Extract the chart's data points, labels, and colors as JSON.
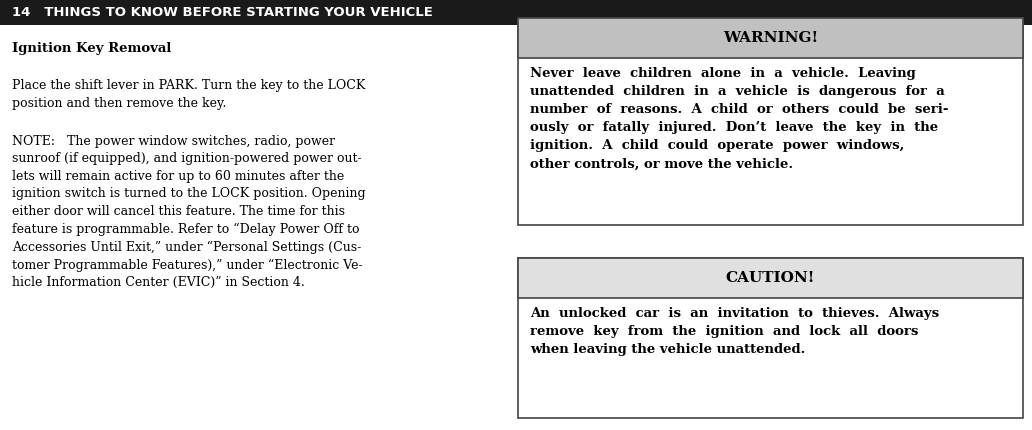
{
  "bg_color": "#ffffff",
  "header_bg": "#1a1a1a",
  "header_text_color": "#ffffff",
  "header_number": "14",
  "header_title": "THINGS TO KNOW BEFORE STARTING YOUR VEHICLE",
  "header_fontsize": 9.5,
  "section_title": "Ignition Key Removal",
  "section_title_fontsize": 9.5,
  "para1_line1": "Place the shift lever in PARK. Turn the key to the LOCK",
  "para1_line2": "position and then remove the key.",
  "para1_fontsize": 9.0,
  "note_lines": [
    "NOTE:   The power window switches, radio, power",
    "sunroof (if equipped), and ignition-powered power out-",
    "lets will remain active for up to 60 minutes after the",
    "ignition switch is turned to the LOCK position. Opening",
    "either door will cancel this feature. The time for this",
    "feature is programmable. Refer to “Delay Power Off to",
    "Accessories Until Exit,” under “Personal Settings (Cus-",
    "tomer Programmable Features),” under “Electronic Ve-",
    "hicle Information Center (EVIC)” in Section 4."
  ],
  "note_fontsize": 9.0,
  "warning_header_bg": "#c0c0c0",
  "warning_border_color": "#444444",
  "warning_title": "WARNING!",
  "warning_title_fontsize": 11.0,
  "warning_lines": [
    "Never  leave  children  alone  in  a  vehicle.  Leaving",
    "unattended  children  in  a  vehicle  is  dangerous  for  a",
    "number  of  reasons.  A  child  or  others  could  be  seri-",
    "ously  or  fatally  injured.  Don’t  leave  the  key  in  the",
    "ignition.  A  child  could  operate  power  windows,",
    "other controls, or move the vehicle."
  ],
  "warning_body_fontsize": 9.5,
  "caution_header_bg": "#e0e0e0",
  "caution_border_color": "#444444",
  "caution_title": "CAUTION!",
  "caution_title_fontsize": 11.0,
  "caution_lines": [
    "An  unlocked  car  is  an  invitation  to  thieves.  Always",
    "remove  key  from  the  ignition  and  lock  all  doors",
    "when leaving the vehicle unattended."
  ],
  "caution_body_fontsize": 9.5
}
